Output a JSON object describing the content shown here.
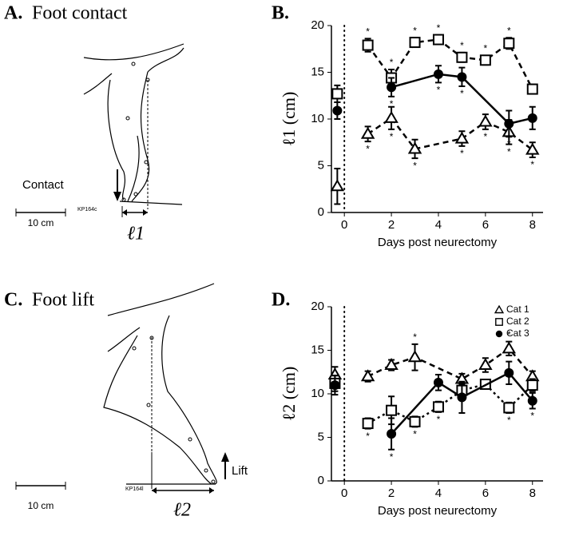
{
  "chart_data": [
    {
      "type": "line",
      "panel": "B.",
      "xlabel": "Days post neurectomy",
      "ylabel": "ℓ1 (cm)",
      "xlim": [
        -0.55,
        8.45
      ],
      "xticks": [
        0,
        2,
        4,
        6,
        8
      ],
      "ylim": [
        0,
        20
      ],
      "yticks": [
        0,
        5,
        10,
        15,
        20
      ],
      "reference_line_x": 0,
      "legend": false,
      "significance_marker": "*",
      "series": [
        {
          "name": "Cat 1",
          "color": "#000000",
          "marker": "triangle",
          "line_style": "dashed",
          "asterisk_side": "below",
          "x": [
            -0.3,
            0,
            1,
            2,
            3,
            5,
            6,
            7,
            8
          ],
          "values": [
            2.8,
            null,
            8.4,
            10.1,
            6.8,
            7.9,
            9.7,
            8.6,
            6.7
          ],
          "errors": [
            1.9,
            null,
            0.8,
            1.2,
            1.0,
            0.8,
            0.8,
            1.3,
            0.8
          ],
          "significant": [
            false,
            null,
            true,
            true,
            true,
            true,
            true,
            true,
            true
          ]
        },
        {
          "name": "Cat 2",
          "color": "#000000",
          "marker": "square",
          "line_style": "dashed",
          "asterisk_side": "above",
          "x": [
            -0.3,
            0,
            1,
            2,
            3,
            4,
            5,
            6,
            7,
            8
          ],
          "values": [
            12.7,
            null,
            17.9,
            14.4,
            18.2,
            18.5,
            16.6,
            16.3,
            18.1,
            13.2
          ],
          "errors": [
            0.9,
            null,
            0.7,
            0.9,
            0.5,
            0.5,
            0.5,
            0.5,
            0.6,
            0.5
          ],
          "significant": [
            false,
            null,
            true,
            true,
            true,
            true,
            true,
            true,
            true,
            false
          ]
        },
        {
          "name": "Cat 3",
          "color": "#000000",
          "marker": "circle",
          "line_style": "solid",
          "asterisk_side": "below",
          "x": [
            -0.3,
            0,
            2,
            4,
            5,
            7,
            8
          ],
          "values": [
            10.9,
            null,
            13.4,
            14.8,
            14.5,
            9.5,
            10.1
          ],
          "errors": [
            0.9,
            null,
            1.0,
            0.9,
            1.0,
            1.4,
            1.2
          ],
          "significant": [
            false,
            null,
            true,
            true,
            true,
            true,
            false
          ]
        }
      ]
    },
    {
      "type": "line",
      "panel": "D.",
      "xlabel": "Days post neurectomy",
      "ylabel": "ℓ2 (cm)",
      "xlim": [
        -0.55,
        8.45
      ],
      "xticks": [
        0,
        2,
        4,
        6,
        8
      ],
      "ylim": [
        0,
        20
      ],
      "yticks": [
        0,
        5,
        10,
        15,
        20
      ],
      "reference_line_x": 0,
      "legend": "upper right",
      "significance_marker": "*",
      "series": [
        {
          "name": "Cat 1",
          "color": "#000000",
          "marker": "triangle",
          "line_style": "dashed",
          "asterisk_side": "above",
          "x": [
            -0.4,
            0,
            1,
            2,
            3,
            5,
            6,
            7,
            8
          ],
          "values": [
            12.2,
            null,
            12.0,
            13.3,
            14.2,
            11.7,
            13.3,
            15.2,
            12.0
          ],
          "errors": [
            0.9,
            null,
            0.6,
            0.6,
            1.5,
            0.6,
            0.8,
            0.8,
            0.6
          ],
          "significant": [
            false,
            null,
            false,
            false,
            true,
            false,
            false,
            true,
            false
          ]
        },
        {
          "name": "Cat 2",
          "color": "#000000",
          "marker": "square",
          "line_style": "dotted",
          "asterisk_side": "below",
          "x": [
            -0.4,
            0,
            1,
            2,
            3,
            4,
            5,
            6,
            7,
            8
          ],
          "values": [
            11.2,
            null,
            6.6,
            8.1,
            6.8,
            8.5,
            10.4,
            11.1,
            8.4,
            11.0
          ],
          "errors": [
            0.9,
            null,
            0.6,
            1.6,
            0.6,
            0.6,
            0.8,
            0.5,
            0.6,
            0.7
          ],
          "significant": [
            false,
            null,
            true,
            true,
            true,
            true,
            false,
            false,
            true,
            true
          ]
        },
        {
          "name": "Cat 3",
          "color": "#000000",
          "marker": "circle",
          "line_style": "solid",
          "asterisk_side": "below",
          "x": [
            -0.4,
            0,
            2,
            4,
            5,
            7,
            8
          ],
          "values": [
            11.0,
            null,
            5.4,
            11.3,
            9.6,
            12.4,
            9.2
          ],
          "errors": [
            1.1,
            null,
            1.8,
            0.9,
            1.8,
            1.3,
            0.9
          ],
          "significant": [
            false,
            null,
            true,
            false,
            false,
            false,
            true
          ]
        }
      ]
    }
  ],
  "diagrams": [
    {
      "panel": "A.",
      "title": "Foot contact",
      "scale": "10 cm",
      "tag": "KP164c",
      "arrow": "Contact",
      "measure": "ℓ1"
    },
    {
      "panel": "C.",
      "title": "Foot lift",
      "scale": "10 cm",
      "tag": "KP164l",
      "arrow": "Lift",
      "measure": "ℓ2"
    }
  ]
}
